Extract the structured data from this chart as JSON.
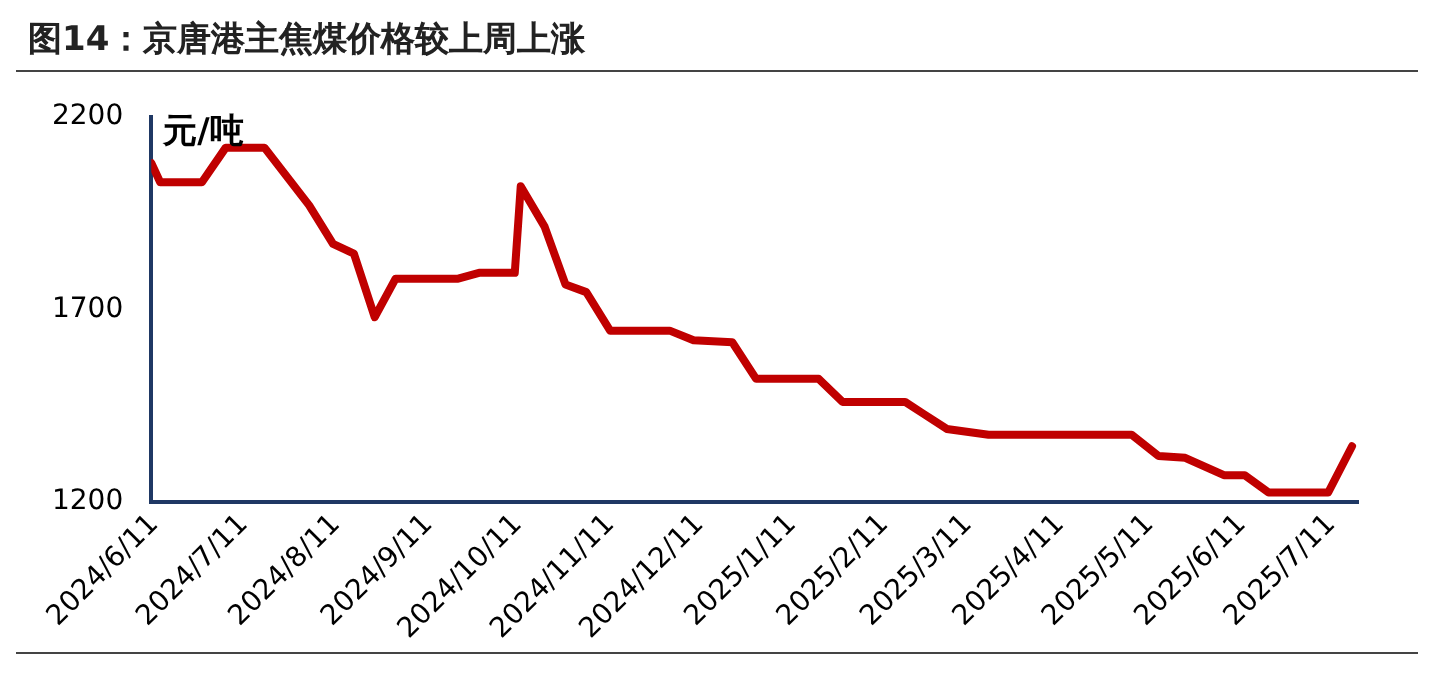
{
  "chart_data": {
    "type": "line",
    "title": "图14：京唐港主焦煤价格较上周上涨",
    "ylabel": "元/吨",
    "x": [
      "2024-06-10",
      "2024-06-13",
      "2024-06-27",
      "2024-07-05",
      "2024-07-18",
      "2024-08-02",
      "2024-08-10",
      "2024-08-17",
      "2024-08-24",
      "2024-08-31",
      "2024-09-21",
      "2024-09-28",
      "2024-10-10",
      "2024-10-12",
      "2024-10-20",
      "2024-10-27",
      "2024-11-03",
      "2024-11-11",
      "2024-12-01",
      "2024-12-09",
      "2024-12-22",
      "2024-12-30",
      "2025-01-20",
      "2025-01-28",
      "2025-02-18",
      "2025-02-24",
      "2025-03-04",
      "2025-03-18",
      "2025-05-05",
      "2025-05-14",
      "2025-05-23",
      "2025-06-05",
      "2025-06-12",
      "2025-06-20",
      "2025-07-10",
      "2025-07-18"
    ],
    "series": [
      {
        "color": "#c00000",
        "values": [
          2080,
          2030,
          2030,
          2120,
          2120,
          1970,
          1870,
          1845,
          1680,
          1780,
          1780,
          1795,
          1795,
          2020,
          1915,
          1765,
          1745,
          1645,
          1645,
          1620,
          1615,
          1520,
          1520,
          1460,
          1460,
          1430,
          1390,
          1375,
          1375,
          1320,
          1315,
          1270,
          1270,
          1225,
          1225,
          1345
        ]
      }
    ],
    "xlim": [
      "2024-06-10",
      "2025-07-20"
    ],
    "xticks": [
      {
        "value": "2024-06-11",
        "label": "2024/6/11"
      },
      {
        "value": "2024-07-11",
        "label": "2024/7/11"
      },
      {
        "value": "2024-08-11",
        "label": "2024/8/11"
      },
      {
        "value": "2024-09-11",
        "label": "2024/9/11"
      },
      {
        "value": "2024-10-11",
        "label": "2024/10/11"
      },
      {
        "value": "2024-11-11",
        "label": "2024/11/11"
      },
      {
        "value": "2024-12-11",
        "label": "2024/12/11"
      },
      {
        "value": "2025-01-11",
        "label": "2025/1/11"
      },
      {
        "value": "2025-02-11",
        "label": "2025/2/11"
      },
      {
        "value": "2025-03-11",
        "label": "2025/3/11"
      },
      {
        "value": "2025-04-11",
        "label": "2025/4/11"
      },
      {
        "value": "2025-05-11",
        "label": "2025/5/11"
      },
      {
        "value": "2025-06-11",
        "label": "2025/6/11"
      },
      {
        "value": "2025-07-11",
        "label": "2025/7/11"
      }
    ],
    "ylim": [
      1200,
      2200
    ],
    "yticks": [
      1200,
      1700,
      2200
    ],
    "grid": false,
    "legend": false,
    "marker": "none",
    "line_style": "solid"
  }
}
